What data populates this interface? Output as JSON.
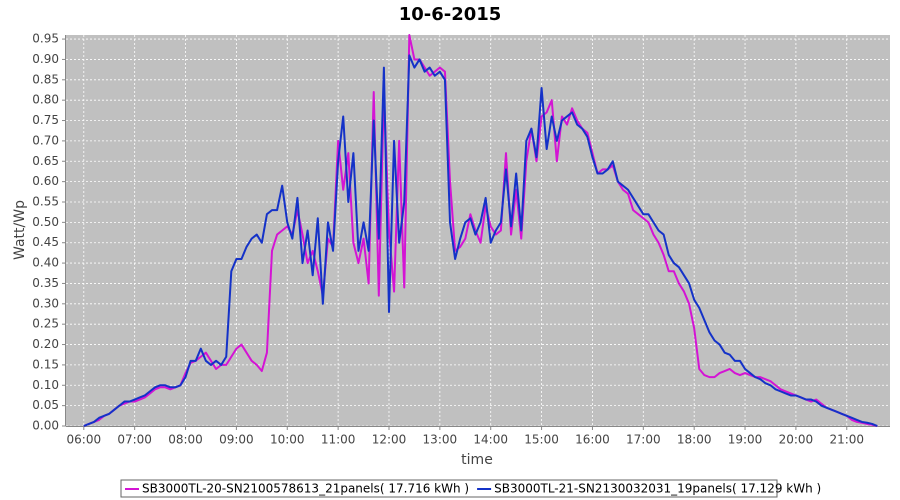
{
  "chart_data": {
    "type": "line",
    "title": "10-6-2015",
    "x_label": "time",
    "y_label": "Watt/Wp",
    "xlim": [
      5.65,
      21.85
    ],
    "ylim": [
      0,
      0.96
    ],
    "grid": true,
    "legend": "bottom",
    "background": "#c0c0c0",
    "xticks": [
      {
        "value": 6,
        "label": "06:00"
      },
      {
        "value": 7,
        "label": "07:00"
      },
      {
        "value": 8,
        "label": "08:00"
      },
      {
        "value": 9,
        "label": "09:00"
      },
      {
        "value": 10,
        "label": "10:00"
      },
      {
        "value": 11,
        "label": "11:00"
      },
      {
        "value": 12,
        "label": "12:00"
      },
      {
        "value": 13,
        "label": "13:00"
      },
      {
        "value": 14,
        "label": "14:00"
      },
      {
        "value": 15,
        "label": "15:00"
      },
      {
        "value": 16,
        "label": "16:00"
      },
      {
        "value": 17,
        "label": "17:00"
      },
      {
        "value": 18,
        "label": "18:00"
      },
      {
        "value": 19,
        "label": "19:00"
      },
      {
        "value": 20,
        "label": "20:00"
      },
      {
        "value": 21,
        "label": "21:00"
      }
    ],
    "yticks": [
      {
        "value": 0,
        "label": "0.00"
      },
      0.05,
      {
        "value": 0.1,
        "label": "0.10"
      },
      0.15,
      {
        "value": 0.2,
        "label": "0.20"
      },
      0.25,
      {
        "value": 0.3,
        "label": "0.30"
      },
      0.35,
      {
        "value": 0.4,
        "label": "0.40"
      },
      0.45,
      {
        "value": 0.5,
        "label": "0.50"
      },
      0.55,
      {
        "value": 0.6,
        "label": "0.60"
      },
      0.65,
      {
        "value": 0.7,
        "label": "0.70"
      },
      0.75,
      {
        "value": 0.8,
        "label": "0.80"
      },
      0.85,
      {
        "value": 0.9,
        "label": "0.90"
      },
      0.95
    ],
    "x": [
      6,
      6.1,
      6.2,
      6.3,
      6.4,
      6.5,
      6.6,
      6.7,
      6.8,
      6.9,
      7,
      7.1,
      7.2,
      7.3,
      7.4,
      7.5,
      7.6,
      7.7,
      7.8,
      7.9,
      8,
      8.1,
      8.2,
      8.3,
      8.4,
      8.5,
      8.6,
      8.7,
      8.8,
      8.9,
      9,
      9.1,
      9.2,
      9.3,
      9.4,
      9.5,
      9.6,
      9.7,
      9.8,
      9.9,
      10,
      10.1,
      10.2,
      10.3,
      10.4,
      10.5,
      10.6,
      10.7,
      10.8,
      10.9,
      11,
      11.1,
      11.2,
      11.3,
      11.4,
      11.5,
      11.6,
      11.7,
      11.8,
      11.9,
      12,
      12.1,
      12.2,
      12.3,
      12.4,
      12.5,
      12.6,
      12.7,
      12.8,
      12.9,
      13,
      13.1,
      13.2,
      13.3,
      13.4,
      13.5,
      13.6,
      13.7,
      13.8,
      13.9,
      14,
      14.1,
      14.2,
      14.3,
      14.4,
      14.5,
      14.6,
      14.7,
      14.8,
      14.9,
      15,
      15.1,
      15.2,
      15.3,
      15.4,
      15.5,
      15.6,
      15.7,
      15.8,
      15.9,
      16,
      16.1,
      16.2,
      16.3,
      16.4,
      16.5,
      16.6,
      16.7,
      16.8,
      16.9,
      17,
      17.1,
      17.2,
      17.3,
      17.4,
      17.5,
      17.6,
      17.7,
      17.8,
      17.9,
      18,
      18.1,
      18.2,
      18.3,
      18.4,
      18.5,
      18.6,
      18.7,
      18.8,
      18.9,
      19,
      19.1,
      19.2,
      19.3,
      19.4,
      19.5,
      19.6,
      19.7,
      19.8,
      19.9,
      20,
      20.1,
      20.2,
      20.3,
      20.4,
      20.5,
      20.6,
      20.7,
      20.8,
      20.9,
      21,
      21.1,
      21.2,
      21.3,
      21.4,
      21.5,
      21.6
    ],
    "series": [
      {
        "name": "SB3000TL-20-SN2100578613_21panels( 17.716 kWh )",
        "color": "#d414d4",
        "values": [
          0,
          0.005,
          0.01,
          0.015,
          0.025,
          0.03,
          0.04,
          0.05,
          0.055,
          0.06,
          0.06,
          0.065,
          0.07,
          0.08,
          0.09,
          0.095,
          0.095,
          0.09,
          0.095,
          0.1,
          0.13,
          0.155,
          0.16,
          0.17,
          0.18,
          0.16,
          0.14,
          0.15,
          0.15,
          0.17,
          0.19,
          0.2,
          0.18,
          0.16,
          0.15,
          0.135,
          0.18,
          0.43,
          0.47,
          0.48,
          0.49,
          0.47,
          0.53,
          0.47,
          0.4,
          0.43,
          0.38,
          0.32,
          0.46,
          0.44,
          0.7,
          0.58,
          0.67,
          0.45,
          0.4,
          0.46,
          0.35,
          0.82,
          0.32,
          0.82,
          0.48,
          0.33,
          0.7,
          0.34,
          0.96,
          0.9,
          0.9,
          0.88,
          0.86,
          0.87,
          0.88,
          0.87,
          0.6,
          0.43,
          0.44,
          0.46,
          0.52,
          0.48,
          0.45,
          0.54,
          0.49,
          0.47,
          0.48,
          0.67,
          0.47,
          0.58,
          0.46,
          0.65,
          0.73,
          0.65,
          0.76,
          0.77,
          0.8,
          0.65,
          0.76,
          0.74,
          0.78,
          0.75,
          0.73,
          0.72,
          0.67,
          0.62,
          0.63,
          0.63,
          0.64,
          0.6,
          0.58,
          0.57,
          0.53,
          0.52,
          0.51,
          0.5,
          0.47,
          0.45,
          0.42,
          0.38,
          0.38,
          0.35,
          0.33,
          0.3,
          0.24,
          0.14,
          0.125,
          0.12,
          0.12,
          0.13,
          0.135,
          0.14,
          0.13,
          0.125,
          0.13,
          0.125,
          0.12,
          0.12,
          0.115,
          0.11,
          0.1,
          0.09,
          0.085,
          0.08,
          0.075,
          0.07,
          0.065,
          0.06,
          0.065,
          0.055,
          0.045,
          0.04,
          0.035,
          0.03,
          0.025,
          0.015,
          0.01,
          0.008,
          0.005,
          0.003,
          0
        ]
      },
      {
        "name": "SB3000TL-21-SN2130032031_19panels( 17.129 kWh )",
        "color": "#1432c8",
        "values": [
          0,
          0.005,
          0.01,
          0.02,
          0.025,
          0.03,
          0.04,
          0.05,
          0.06,
          0.06,
          0.065,
          0.07,
          0.075,
          0.085,
          0.095,
          0.1,
          0.1,
          0.095,
          0.095,
          0.1,
          0.12,
          0.16,
          0.16,
          0.19,
          0.16,
          0.15,
          0.16,
          0.15,
          0.17,
          0.38,
          0.41,
          0.41,
          0.44,
          0.46,
          0.47,
          0.45,
          0.52,
          0.53,
          0.53,
          0.59,
          0.5,
          0.46,
          0.56,
          0.4,
          0.48,
          0.37,
          0.51,
          0.3,
          0.5,
          0.43,
          0.65,
          0.76,
          0.55,
          0.67,
          0.43,
          0.5,
          0.43,
          0.75,
          0.46,
          0.88,
          0.28,
          0.7,
          0.45,
          0.55,
          0.91,
          0.88,
          0.9,
          0.87,
          0.88,
          0.86,
          0.87,
          0.85,
          0.5,
          0.41,
          0.46,
          0.5,
          0.51,
          0.47,
          0.5,
          0.56,
          0.45,
          0.48,
          0.5,
          0.63,
          0.49,
          0.62,
          0.48,
          0.7,
          0.73,
          0.66,
          0.83,
          0.68,
          0.76,
          0.7,
          0.75,
          0.76,
          0.77,
          0.74,
          0.73,
          0.71,
          0.66,
          0.62,
          0.62,
          0.63,
          0.65,
          0.6,
          0.59,
          0.58,
          0.56,
          0.54,
          0.52,
          0.52,
          0.5,
          0.48,
          0.47,
          0.42,
          0.4,
          0.39,
          0.37,
          0.35,
          0.31,
          0.29,
          0.26,
          0.23,
          0.21,
          0.2,
          0.18,
          0.175,
          0.16,
          0.16,
          0.14,
          0.13,
          0.12,
          0.115,
          0.105,
          0.1,
          0.09,
          0.085,
          0.08,
          0.075,
          0.075,
          0.07,
          0.065,
          0.065,
          0.06,
          0.05,
          0.045,
          0.04,
          0.035,
          0.03,
          0.025,
          0.02,
          0.015,
          0.01,
          0.008,
          0.005,
          0
        ]
      }
    ]
  }
}
